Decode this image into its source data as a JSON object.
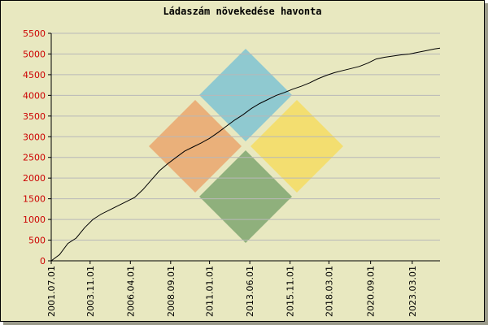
{
  "chart_data": {
    "type": "line",
    "title": "Ládaszám növekedése havonta",
    "xlabel": "",
    "ylabel": "",
    "ylim": [
      0,
      5500
    ],
    "yticks": [
      0,
      500,
      1000,
      1500,
      2000,
      2500,
      3000,
      3500,
      4000,
      4500,
      5000,
      5500
    ],
    "xticks": [
      "2001.07.01",
      "2003.11.01",
      "2006.04.01",
      "2008.09.01",
      "2011.01.01",
      "2013.06.01",
      "2015.11.01",
      "2018.03.01",
      "2020.09.01",
      "2023.03.01"
    ],
    "grid": true,
    "series": [
      {
        "color": "#000000",
        "points": [
          [
            "2001.07.01",
            0
          ],
          [
            "2002.01.01",
            150
          ],
          [
            "2002.07.01",
            420
          ],
          [
            "2003.01.01",
            550
          ],
          [
            "2003.07.01",
            800
          ],
          [
            "2004.01.01",
            1000
          ],
          [
            "2004.07.01",
            1130
          ],
          [
            "2005.01.01",
            1230
          ],
          [
            "2005.07.01",
            1330
          ],
          [
            "2006.01.01",
            1430
          ],
          [
            "2006.07.01",
            1530
          ],
          [
            "2007.01.01",
            1720
          ],
          [
            "2007.07.01",
            1950
          ],
          [
            "2008.01.01",
            2180
          ],
          [
            "2008.07.01",
            2350
          ],
          [
            "2009.01.01",
            2500
          ],
          [
            "2009.07.01",
            2650
          ],
          [
            "2010.01.01",
            2750
          ],
          [
            "2010.07.01",
            2850
          ],
          [
            "2011.01.01",
            2960
          ],
          [
            "2011.07.01",
            3100
          ],
          [
            "2012.01.01",
            3250
          ],
          [
            "2012.07.01",
            3400
          ],
          [
            "2013.01.01",
            3530
          ],
          [
            "2013.07.01",
            3680
          ],
          [
            "2014.01.01",
            3800
          ],
          [
            "2014.07.01",
            3900
          ],
          [
            "2015.01.01",
            4000
          ],
          [
            "2015.07.01",
            4070
          ],
          [
            "2016.01.01",
            4150
          ],
          [
            "2016.07.01",
            4220
          ],
          [
            "2017.01.01",
            4300
          ],
          [
            "2017.07.01",
            4400
          ],
          [
            "2018.01.01",
            4480
          ],
          [
            "2018.07.01",
            4550
          ],
          [
            "2019.01.01",
            4600
          ],
          [
            "2019.07.01",
            4650
          ],
          [
            "2020.01.01",
            4700
          ],
          [
            "2020.07.01",
            4780
          ],
          [
            "2021.01.01",
            4880
          ],
          [
            "2021.07.01",
            4920
          ],
          [
            "2022.01.01",
            4950
          ],
          [
            "2022.07.01",
            4980
          ],
          [
            "2023.01.01",
            5000
          ],
          [
            "2023.07.01",
            5040
          ],
          [
            "2024.01.01",
            5080
          ],
          [
            "2024.07.01",
            5120
          ],
          [
            "2024.11.01",
            5140
          ]
        ]
      }
    ],
    "watermark_colors": [
      "#8fc9d0",
      "#eab07a",
      "#f3de70",
      "#8fb07c"
    ]
  }
}
